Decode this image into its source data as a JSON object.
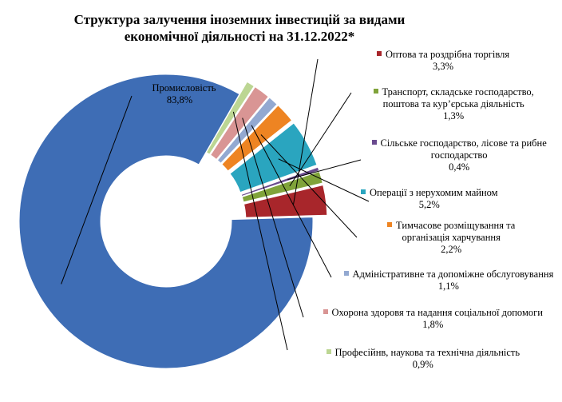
{
  "title": [
    "Структура залучення іноземних інвестицій за видами",
    "економічної діяльності на 31.12.2022*"
  ],
  "chart_data": {
    "type": "pie",
    "donut": true,
    "exploded": true,
    "legend": "none",
    "slices": [
      {
        "name": [
          "Промисловість"
        ],
        "value": 83.8,
        "label": "83,8%",
        "color": "#3e6db5"
      },
      {
        "name": [
          "Оптова та роздрібна торгівля"
        ],
        "value": 3.3,
        "label": "3,3%",
        "color": "#a8262b"
      },
      {
        "name": [
          "Транспорт, складське господарство,",
          "поштова та кур’єрська діяльність"
        ],
        "value": 1.3,
        "label": "1,3%",
        "color": "#80a33a"
      },
      {
        "name": [
          "Сільське господарство, лісове та рибне",
          "господарство"
        ],
        "value": 0.4,
        "label": "0,4%",
        "color": "#6a4b8f"
      },
      {
        "name": [
          "Операції з нерухомим майном"
        ],
        "value": 5.2,
        "label": "5,2%",
        "color": "#2aa5bf"
      },
      {
        "name": [
          "Тимчасове розміщування та",
          "організація харчування"
        ],
        "value": 2.2,
        "label": "2,2%",
        "color": "#ee8422"
      },
      {
        "name": [
          "Адміністративне та допоміжне обслуговування"
        ],
        "value": 1.1,
        "label": "1,1%",
        "color": "#93a9d1"
      },
      {
        "name": [
          "Охорона здоровя та надання соціальної допомоги"
        ],
        "value": 1.8,
        "label": "1,8%",
        "color": "#d99594"
      },
      {
        "name": [
          "Професійнв, наукова та технічна діяльність"
        ],
        "value": 0.9,
        "label": "0,9%",
        "color": "#bcd693"
      }
    ]
  }
}
